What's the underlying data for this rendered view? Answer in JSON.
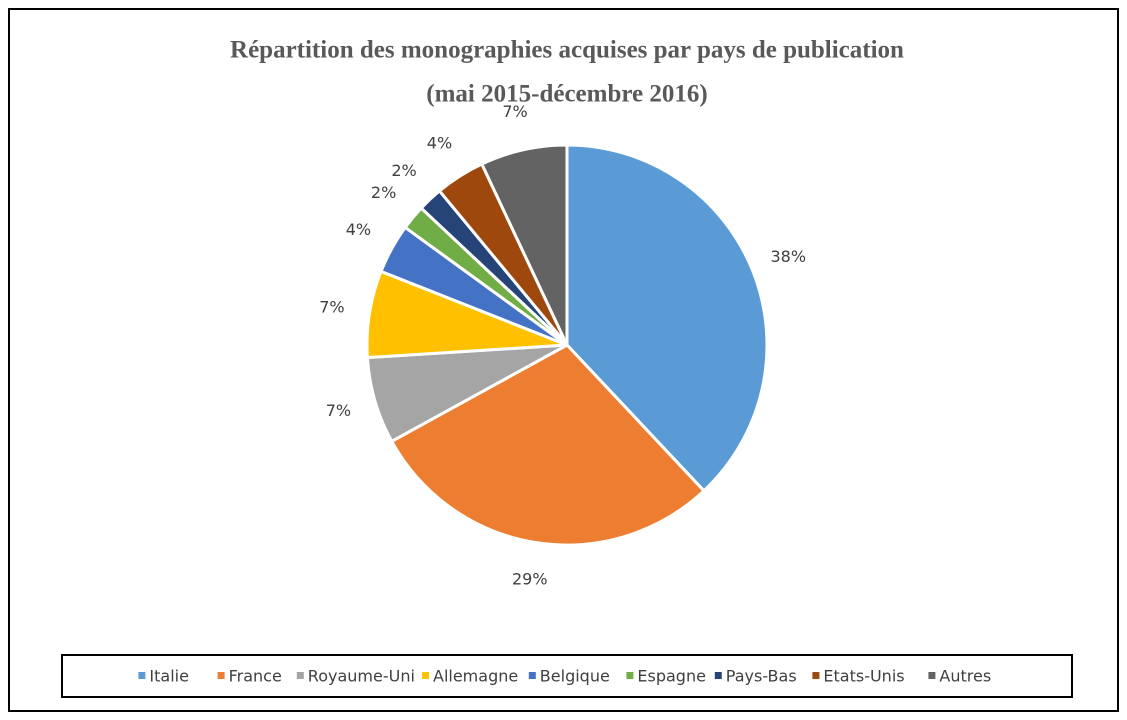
{
  "chart_data": {
    "type": "pie",
    "title": "Répartition des monographies acquises par pays de publication",
    "subtitle": "(mai 2015-décembre 2016)",
    "categories": [
      "Italie",
      "France",
      "Royaume-Uni",
      "Allemagne",
      "Belgique",
      "Espagne",
      "Pays-Bas",
      "Etats-Unis",
      "Autres"
    ],
    "values": [
      38,
      29,
      7,
      7,
      4,
      2,
      2,
      4,
      7
    ],
    "value_labels": [
      "38%",
      "29%",
      "7%",
      "7%",
      "4%",
      "2%",
      "2%",
      "4%",
      "7%"
    ],
    "colors": [
      "#5b9bd5",
      "#ed7d31",
      "#a5a5a5",
      "#ffc000",
      "#4472c4",
      "#70ad47",
      "#264478",
      "#9e480e",
      "#636363"
    ],
    "legend": "bottom"
  }
}
